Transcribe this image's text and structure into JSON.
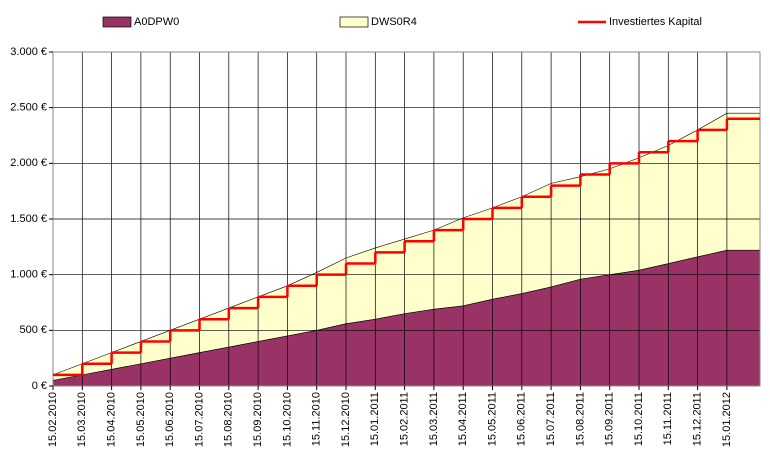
{
  "chart_data": {
    "type": "area",
    "x": [
      "15.02.2010",
      "15.03.2010",
      "15.04.2010",
      "15.05.2010",
      "15.06.2010",
      "15.07.2010",
      "15.08.2010",
      "15.09.2010",
      "15.10.2010",
      "15.11.2010",
      "15.12.2010",
      "15.01.2011",
      "15.02.2011",
      "15.03.2011",
      "15.04.2011",
      "15.05.2011",
      "15.06.2011",
      "15.07.2011",
      "15.08.2011",
      "15.09.2011",
      "15.10.2011",
      "15.11.2011",
      "15.12.2011",
      "15.01.2012"
    ],
    "series": [
      {
        "name": "A0DPW0",
        "color": "#993366",
        "stacked": true,
        "values": [
          50,
          100,
          150,
          200,
          250,
          300,
          350,
          400,
          450,
          500,
          560,
          600,
          650,
          690,
          720,
          780,
          830,
          890,
          960,
          1000,
          1040,
          1100,
          1160,
          1220
        ]
      },
      {
        "name": "DWS0R4",
        "color": "#ffffcc",
        "stacked": true,
        "values": [
          50,
          100,
          150,
          200,
          250,
          300,
          350,
          400,
          450,
          520,
          590,
          640,
          670,
          710,
          790,
          820,
          870,
          930,
          920,
          950,
          1010,
          1060,
          1140,
          1230
        ]
      },
      {
        "name": "Investiertes Kapital",
        "color": "#ff0000",
        "step": true,
        "values": [
          100,
          200,
          300,
          400,
          500,
          600,
          700,
          800,
          900,
          1000,
          1100,
          1200,
          1300,
          1400,
          1500,
          1600,
          1700,
          1800,
          1900,
          2000,
          2100,
          2200,
          2300,
          2400
        ]
      }
    ],
    "ylim": [
      0,
      3000
    ],
    "yticks": [
      {
        "value": 0,
        "label": "0 €"
      },
      {
        "value": 500,
        "label": "500 €"
      },
      {
        "value": 1000,
        "label": "1.000 €"
      },
      {
        "value": 1500,
        "label": "1.500 €"
      },
      {
        "value": 2000,
        "label": "2.000 €"
      },
      {
        "value": 2500,
        "label": "2.500 €"
      },
      {
        "value": 3000,
        "label": "3.000 €"
      }
    ],
    "grid": true,
    "legend": "top"
  }
}
